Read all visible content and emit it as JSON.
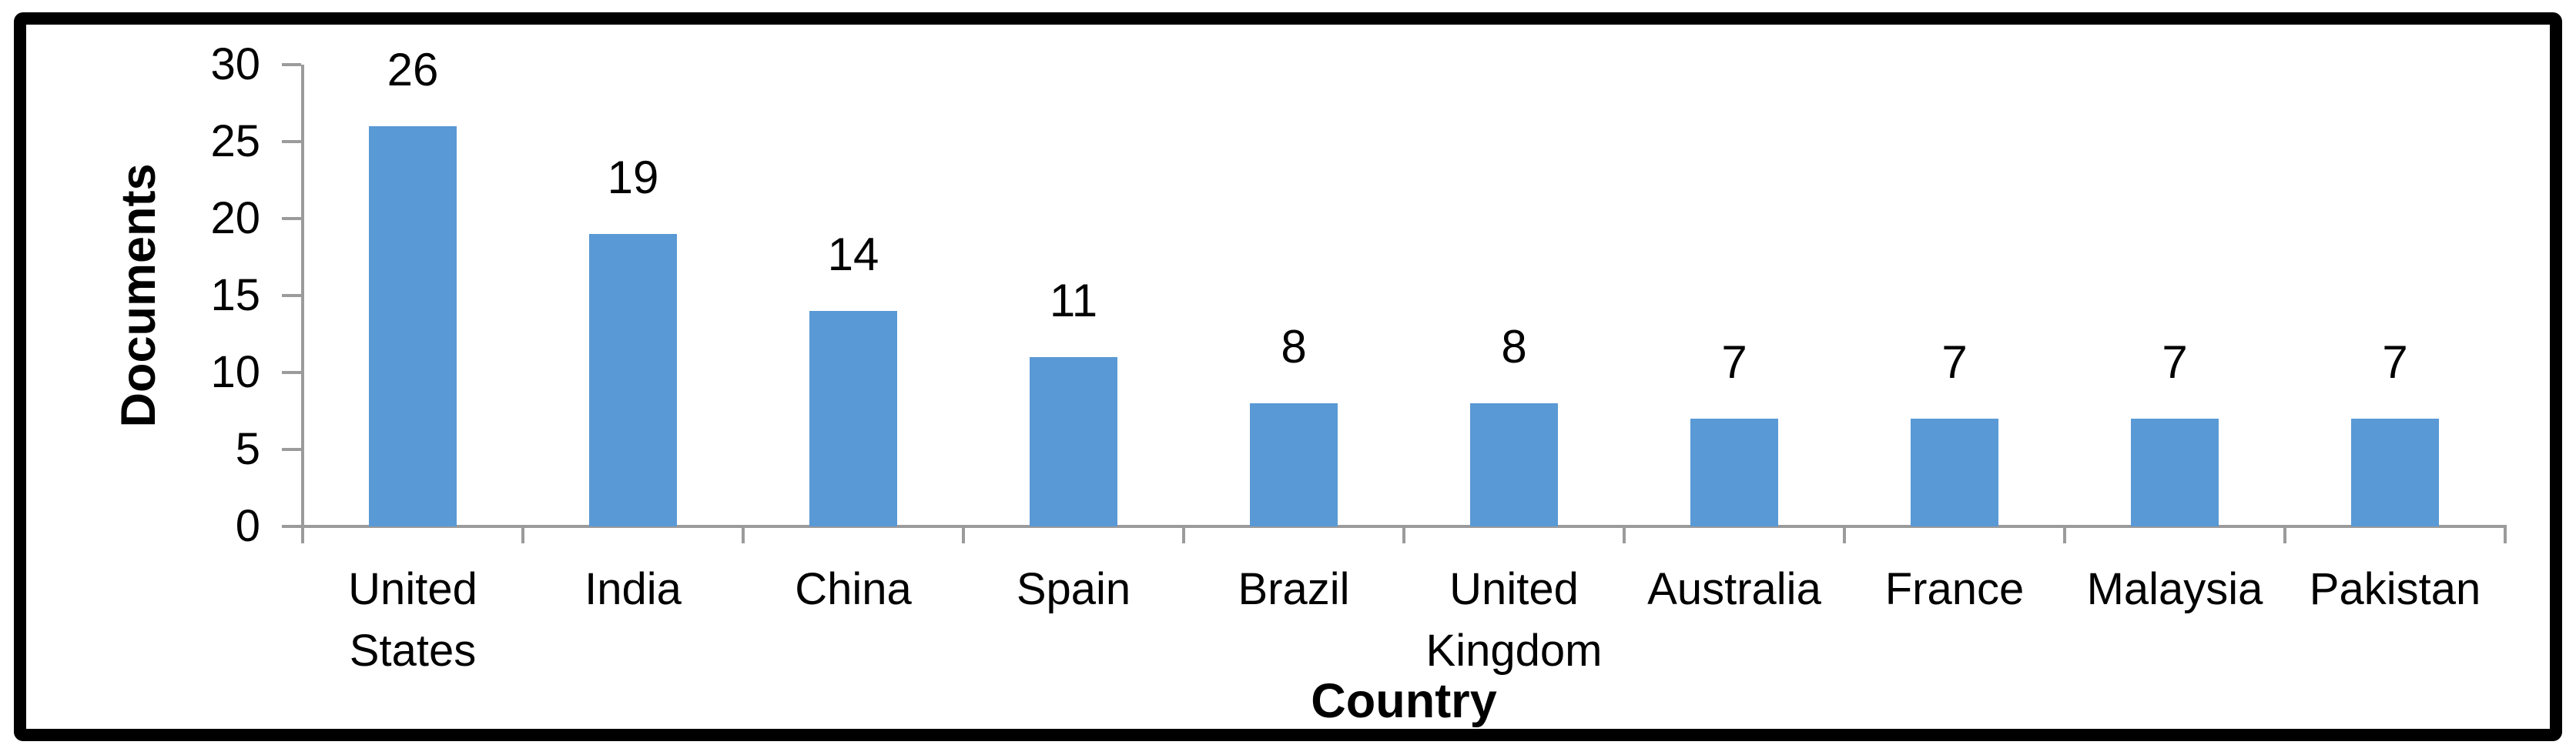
{
  "chart_data": {
    "type": "bar",
    "title": "",
    "categories": [
      "United States",
      "India",
      "China",
      "Spain",
      "Brazil",
      "United Kingdom",
      "Australia",
      "France",
      "Malaysia",
      "Pakistan"
    ],
    "values": [
      26,
      19,
      14,
      11,
      8,
      8,
      7,
      7,
      7,
      7
    ],
    "xlabel": "Country",
    "ylabel": "Documents",
    "ylim": [
      0,
      30
    ],
    "yticks": [
      0,
      5,
      10,
      15,
      20,
      25,
      30
    ],
    "grid": false,
    "legend": "none",
    "data_labels_shown": true,
    "bar_color": "#5999D5",
    "axis_color": "#9B9B9B",
    "text_color": "#000000",
    "frame_color": "#000000"
  }
}
